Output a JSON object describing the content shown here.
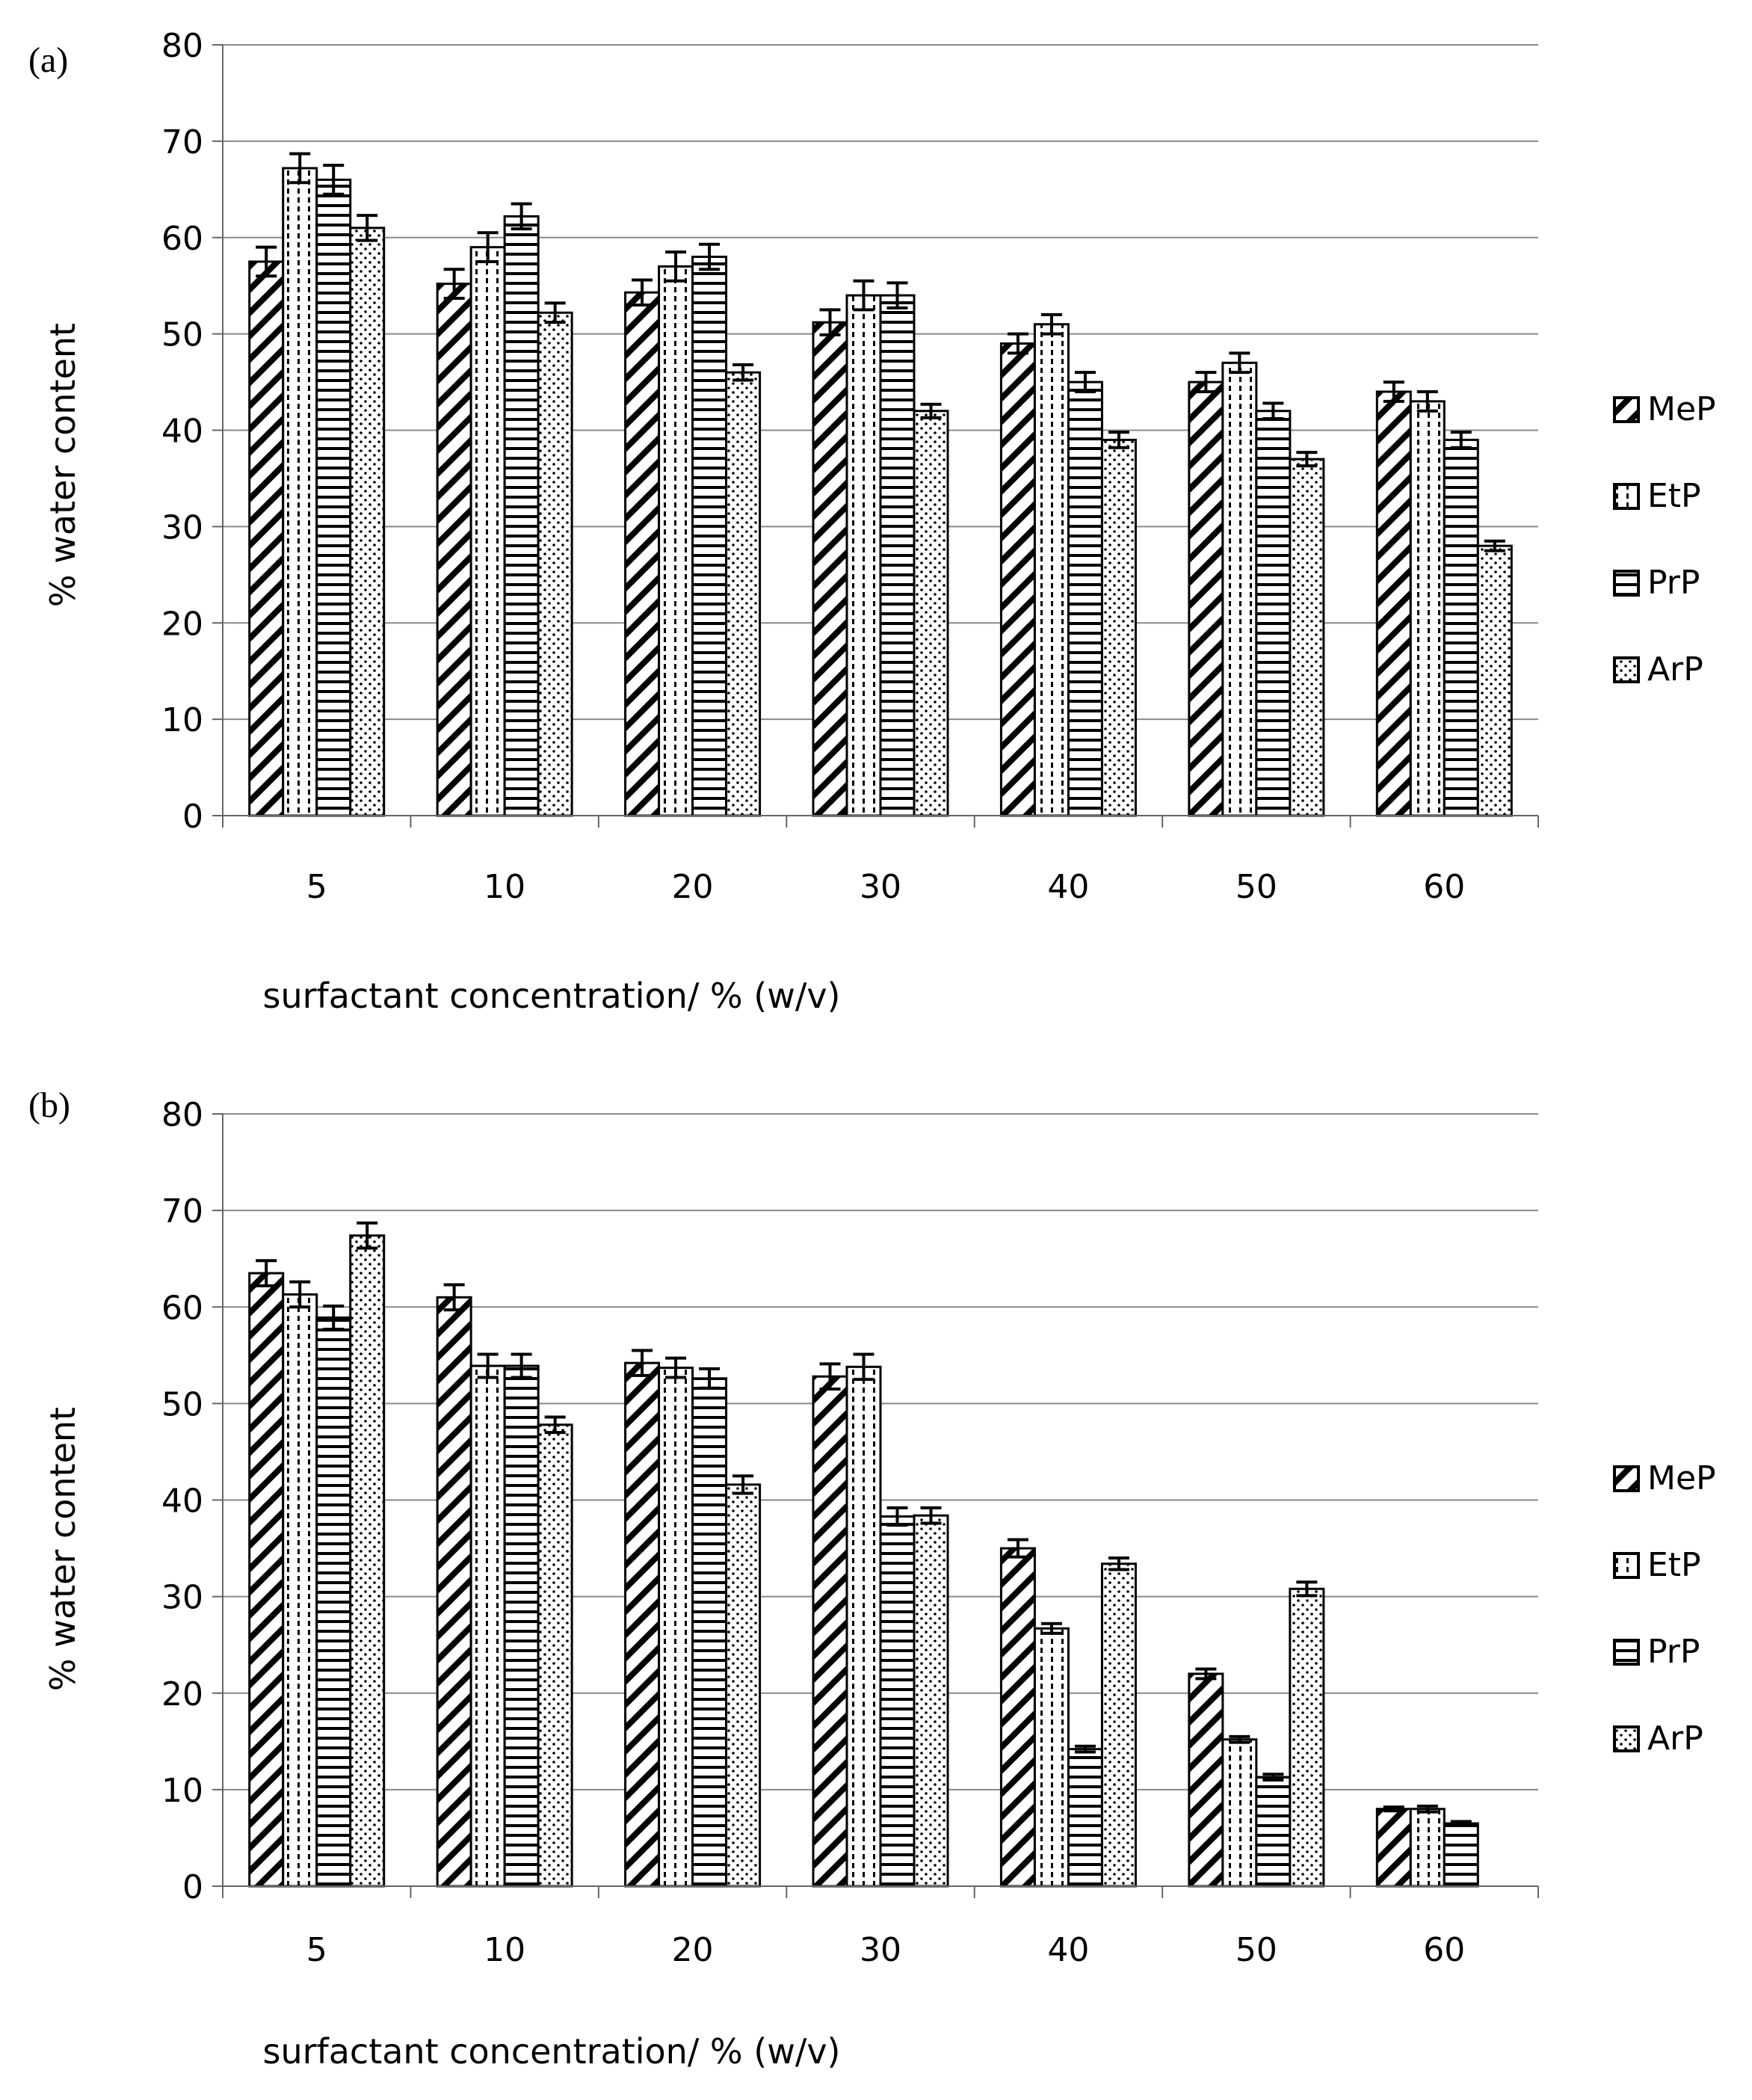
{
  "chart_data": [
    {
      "type": "bar",
      "panel_label": "(a)",
      "categories": [
        "5",
        "10",
        "20",
        "30",
        "40",
        "50",
        "60"
      ],
      "series": [
        {
          "name": "MeP",
          "values": [
            57.5,
            55.2,
            54.3,
            51.2,
            49.0,
            45.0,
            44.0
          ],
          "errors": [
            1.5,
            1.5,
            1.3,
            1.3,
            1.0,
            1.0,
            1.0
          ]
        },
        {
          "name": "EtP",
          "values": [
            67.2,
            59.0,
            57.0,
            54.0,
            51.0,
            47.0,
            43.0
          ],
          "errors": [
            1.5,
            1.5,
            1.5,
            1.5,
            1.0,
            1.0,
            1.0
          ]
        },
        {
          "name": "PrP",
          "values": [
            66.0,
            62.2,
            58.0,
            54.0,
            45.0,
            42.0,
            39.0
          ],
          "errors": [
            1.5,
            1.3,
            1.3,
            1.3,
            1.0,
            0.8,
            0.8
          ]
        },
        {
          "name": "ArP",
          "values": [
            61.0,
            52.2,
            46.0,
            42.0,
            39.0,
            37.0,
            28.0
          ],
          "errors": [
            1.3,
            1.0,
            0.8,
            0.7,
            0.8,
            0.7,
            0.5
          ]
        }
      ],
      "xlabel": "surfactant concentration/ % (w/v)",
      "ylabel": "% water content",
      "ylim": [
        0,
        80
      ],
      "yticks": [
        "0",
        "10",
        "20",
        "30",
        "40",
        "50",
        "60",
        "70",
        "80"
      ],
      "grid": true,
      "legend": "right"
    },
    {
      "type": "bar",
      "panel_label": "(b)",
      "categories": [
        "5",
        "10",
        "20",
        "30",
        "40",
        "50",
        "60"
      ],
      "series": [
        {
          "name": "MeP",
          "values": [
            63.5,
            61.0,
            54.2,
            52.8,
            35.0,
            22.0,
            8.0
          ],
          "errors": [
            1.3,
            1.3,
            1.3,
            1.3,
            0.9,
            0.5,
            0.2
          ]
        },
        {
          "name": "EtP",
          "values": [
            61.3,
            53.9,
            53.7,
            53.8,
            26.7,
            15.2,
            8.0
          ],
          "errors": [
            1.3,
            1.2,
            1.0,
            1.3,
            0.5,
            0.3,
            0.3
          ]
        },
        {
          "name": "PrP",
          "values": [
            58.9,
            53.9,
            52.6,
            38.3,
            14.2,
            11.3,
            6.5
          ],
          "errors": [
            1.2,
            1.2,
            1.0,
            0.9,
            0.3,
            0.3,
            0.2
          ]
        },
        {
          "name": "ArP",
          "values": [
            67.4,
            47.8,
            41.6,
            38.4,
            33.4,
            30.8,
            null
          ],
          "errors": [
            1.3,
            0.8,
            0.9,
            0.8,
            0.6,
            0.7,
            null
          ]
        }
      ],
      "xlabel": "surfactant concentration/ % (w/v)",
      "ylabel": "% water content",
      "ylim": [
        0,
        80
      ],
      "yticks": [
        "0",
        "10",
        "20",
        "30",
        "40",
        "50",
        "60",
        "70",
        "80"
      ],
      "grid": true,
      "legend": "right"
    }
  ]
}
